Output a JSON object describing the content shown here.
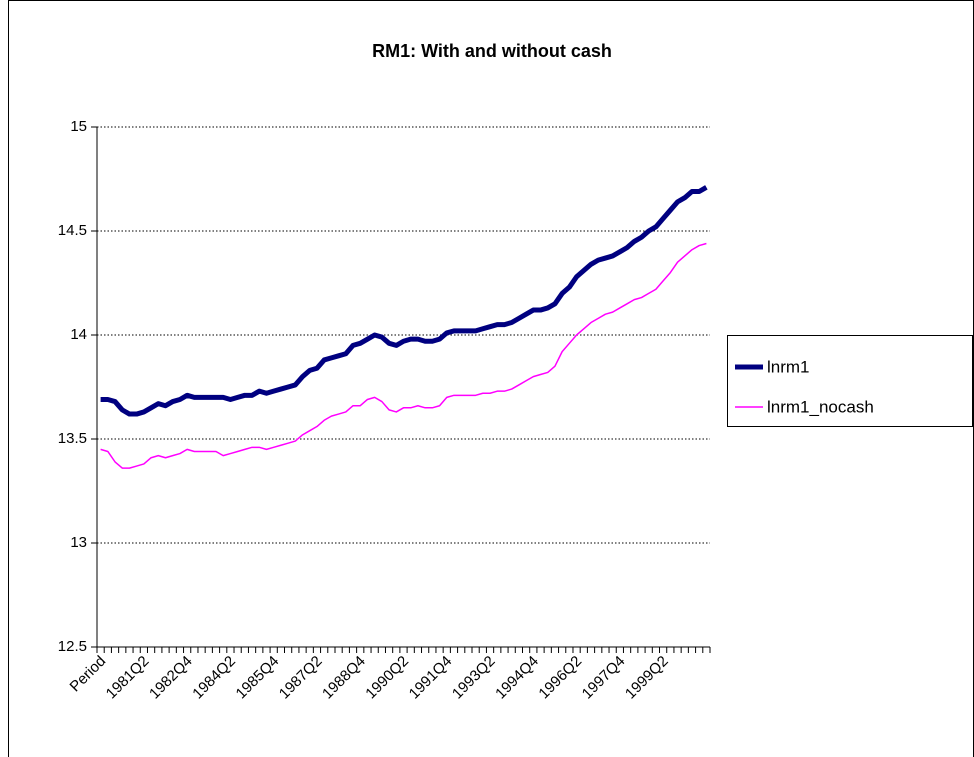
{
  "chart_data": {
    "type": "line",
    "title": "RM1: With and without cash",
    "categories": [
      "Period",
      null,
      null,
      null,
      null,
      null,
      "1981Q2",
      null,
      null,
      null,
      null,
      null,
      "1982Q4",
      null,
      null,
      null,
      null,
      null,
      "1984Q2",
      null,
      null,
      null,
      null,
      null,
      "1985Q4",
      null,
      null,
      null,
      null,
      null,
      "1987Q2",
      null,
      null,
      null,
      null,
      null,
      "1988Q4",
      null,
      null,
      null,
      null,
      null,
      "1990Q2",
      null,
      null,
      null,
      null,
      null,
      "1991Q4",
      null,
      null,
      null,
      null,
      null,
      "1993Q2",
      null,
      null,
      null,
      null,
      null,
      "1994Q4",
      null,
      null,
      null,
      null,
      null,
      "1996Q2",
      null,
      null,
      null,
      null,
      null,
      "1997Q4",
      null,
      null,
      null,
      null,
      null,
      "1999Q2",
      null,
      null,
      null,
      null,
      null,
      null
    ],
    "series": [
      {
        "name": "lnrm1",
        "color": "#000080",
        "width": 5,
        "values": [
          13.69,
          13.69,
          13.68,
          13.64,
          13.62,
          13.62,
          13.63,
          13.65,
          13.67,
          13.66,
          13.68,
          13.69,
          13.71,
          13.7,
          13.7,
          13.7,
          13.7,
          13.7,
          13.69,
          13.7,
          13.71,
          13.71,
          13.73,
          13.72,
          13.73,
          13.74,
          13.75,
          13.76,
          13.8,
          13.83,
          13.84,
          13.88,
          13.89,
          13.9,
          13.91,
          13.95,
          13.96,
          13.98,
          14.0,
          13.99,
          13.96,
          13.95,
          13.97,
          13.98,
          13.98,
          13.97,
          13.97,
          13.98,
          14.01,
          14.02,
          14.02,
          14.02,
          14.02,
          14.03,
          14.04,
          14.05,
          14.05,
          14.06,
          14.08,
          14.1,
          14.12,
          14.12,
          14.13,
          14.15,
          14.2,
          14.23,
          14.28,
          14.31,
          14.34,
          14.36,
          14.37,
          14.38,
          14.4,
          14.42,
          14.45,
          14.47,
          14.5,
          14.52,
          14.56,
          14.6,
          14.64,
          14.66,
          14.69,
          14.69,
          14.71
        ]
      },
      {
        "name": "lnrm1_nocash",
        "color": "#ff00ff",
        "width": 1.5,
        "values": [
          13.45,
          13.44,
          13.39,
          13.36,
          13.36,
          13.37,
          13.38,
          13.41,
          13.42,
          13.41,
          13.42,
          13.43,
          13.45,
          13.44,
          13.44,
          13.44,
          13.44,
          13.42,
          13.43,
          13.44,
          13.45,
          13.46,
          13.46,
          13.45,
          13.46,
          13.47,
          13.48,
          13.49,
          13.52,
          13.54,
          13.56,
          13.59,
          13.61,
          13.62,
          13.63,
          13.66,
          13.66,
          13.69,
          13.7,
          13.68,
          13.64,
          13.63,
          13.65,
          13.65,
          13.66,
          13.65,
          13.65,
          13.66,
          13.7,
          13.71,
          13.71,
          13.71,
          13.71,
          13.72,
          13.72,
          13.73,
          13.73,
          13.74,
          13.76,
          13.78,
          13.8,
          13.81,
          13.82,
          13.85,
          13.92,
          13.96,
          14.0,
          14.03,
          14.06,
          14.08,
          14.1,
          14.11,
          14.13,
          14.15,
          14.17,
          14.18,
          14.2,
          14.22,
          14.26,
          14.3,
          14.35,
          14.38,
          14.41,
          14.43,
          14.44
        ]
      }
    ],
    "ylim": [
      12.5,
      15
    ],
    "yticks": [
      12.5,
      13,
      13.5,
      14,
      14.5,
      15
    ],
    "grid": true,
    "legend": "right"
  }
}
